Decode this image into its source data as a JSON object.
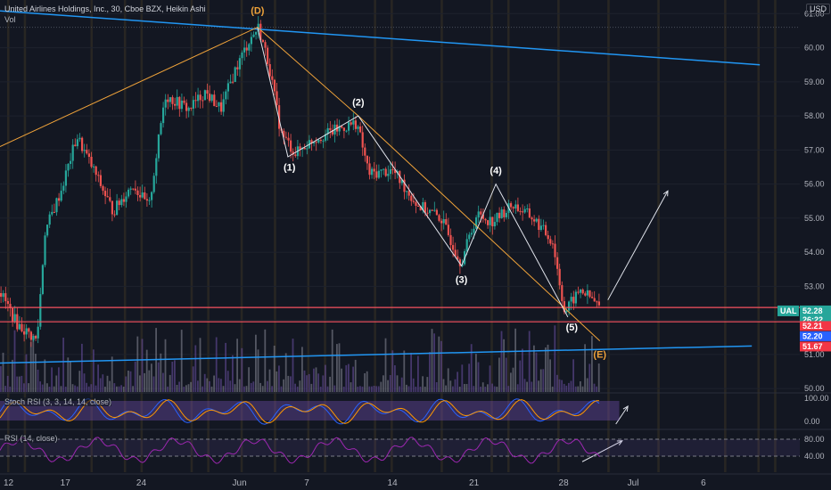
{
  "header": {
    "title": "United Airlines Holdings, Inc., 30, Cboe BZX, Heikin Ashi",
    "volume_label": "Vol",
    "currency": "USD"
  },
  "indicators": {
    "stoch_rsi_label": "Stoch RSI (3, 3, 14, 14, close)",
    "rsi_label": "RSI (14, close)"
  },
  "colors": {
    "background": "#131722",
    "bull": "#26a69a",
    "bear": "#ef5350",
    "trendline_blue": "#2196f3",
    "wave_line": "#f0a33a",
    "wave_path": "#e0e3eb",
    "hline_red": "#f7525f",
    "stoch_fill": "#7e57c2",
    "rsi_line": "#9c27b0"
  },
  "chart_data": {
    "type": "candlestick",
    "symbol": "UAL",
    "interval": "30",
    "style": "Heikin Ashi",
    "ylim": [
      49.9,
      61.4
    ],
    "y_ticks": [
      50.0,
      51.0,
      52.0,
      53.0,
      54.0,
      55.0,
      56.0,
      57.0,
      58.0,
      59.0,
      60.0,
      61.0
    ],
    "y_tick_labels": [
      "50.00",
      "51.00",
      "52.00",
      "53.00",
      "54.00",
      "55.00",
      "56.00",
      "57.00",
      "58.00",
      "59.00",
      "60.00",
      "61.00"
    ],
    "x_ticks": [
      {
        "label": "12",
        "pos": 0.0
      },
      {
        "label": "17",
        "pos": 0.071
      },
      {
        "label": "24",
        "pos": 0.166
      },
      {
        "label": "Jun",
        "pos": 0.286
      },
      {
        "label": "7",
        "pos": 0.376
      },
      {
        "label": "14",
        "pos": 0.48
      },
      {
        "label": "21",
        "pos": 0.582
      },
      {
        "label": "28",
        "pos": 0.694
      },
      {
        "label": "Jul",
        "pos": 0.78
      },
      {
        "label": "6",
        "pos": 0.872
      }
    ],
    "price_path": [
      {
        "t": 0.0,
        "p": 52.8
      },
      {
        "t": 0.02,
        "p": 51.9
      },
      {
        "t": 0.045,
        "p": 51.4
      },
      {
        "t": 0.055,
        "p": 54.6
      },
      {
        "t": 0.075,
        "p": 55.8
      },
      {
        "t": 0.095,
        "p": 57.4
      },
      {
        "t": 0.118,
        "p": 56.3
      },
      {
        "t": 0.14,
        "p": 55.2
      },
      {
        "t": 0.165,
        "p": 56.0
      },
      {
        "t": 0.185,
        "p": 55.3
      },
      {
        "t": 0.205,
        "p": 58.6
      },
      {
        "t": 0.235,
        "p": 58.2
      },
      {
        "t": 0.255,
        "p": 58.7
      },
      {
        "t": 0.275,
        "p": 58.2
      },
      {
        "t": 0.292,
        "p": 59.3
      },
      {
        "t": 0.31,
        "p": 60.2
      },
      {
        "t": 0.322,
        "p": 60.6
      },
      {
        "t": 0.335,
        "p": 59.5
      },
      {
        "t": 0.35,
        "p": 57.5
      },
      {
        "t": 0.368,
        "p": 56.9
      },
      {
        "t": 0.39,
        "p": 57.3
      },
      {
        "t": 0.42,
        "p": 57.6
      },
      {
        "t": 0.445,
        "p": 57.8
      },
      {
        "t": 0.46,
        "p": 56.3
      },
      {
        "t": 0.49,
        "p": 56.4
      },
      {
        "t": 0.52,
        "p": 55.4
      },
      {
        "t": 0.55,
        "p": 55.0
      },
      {
        "t": 0.575,
        "p": 53.7
      },
      {
        "t": 0.595,
        "p": 55.1
      },
      {
        "t": 0.615,
        "p": 54.9
      },
      {
        "t": 0.64,
        "p": 55.4
      },
      {
        "t": 0.665,
        "p": 55.0
      },
      {
        "t": 0.69,
        "p": 54.3
      },
      {
        "t": 0.705,
        "p": 52.2
      },
      {
        "t": 0.712,
        "p": 52.5
      },
      {
        "t": 0.725,
        "p": 52.9
      },
      {
        "t": 0.74,
        "p": 52.6
      },
      {
        "t": 0.752,
        "p": 52.3
      }
    ],
    "last_price": {
      "symbol": "UAL",
      "value": "52.28",
      "countdown": "26:22",
      "raw": 52.28
    },
    "price_badges": [
      {
        "value": "52.21",
        "raw": 52.21,
        "color": "#f23645"
      },
      {
        "value": "52.20",
        "raw": 52.2,
        "color": "#2962ff"
      },
      {
        "value": "51.67",
        "raw": 51.67,
        "color": "#f23645"
      }
    ],
    "horizontal_lines": [
      52.38,
      51.96
    ],
    "trendlines": [
      {
        "from": {
          "t": 0.0,
          "p": 61.08
        },
        "to": {
          "t": 0.95,
          "p": 59.5
        }
      },
      {
        "from": {
          "t": 0.0,
          "p": 50.75
        },
        "to": {
          "t": 0.94,
          "p": 51.25
        }
      }
    ],
    "wave_connectors": [
      {
        "t": 0.0,
        "p": 57.1
      },
      {
        "t": 0.322,
        "p": 60.6
      },
      {
        "t": 0.448,
        "p": 58.0
      },
      {
        "t": 0.75,
        "p": 51.4
      }
    ],
    "wave_path": [
      {
        "t": 0.322,
        "p": 60.6
      },
      {
        "t": 0.36,
        "p": 56.8
      },
      {
        "t": 0.448,
        "p": 58.0
      },
      {
        "t": 0.577,
        "p": 53.6
      },
      {
        "t": 0.62,
        "p": 56.0
      },
      {
        "t": 0.71,
        "p": 52.1
      }
    ],
    "wave_labels": [
      {
        "text": "(D)",
        "t": 0.322,
        "p": 61.0,
        "color": "#f0a33a"
      },
      {
        "text": "(1)",
        "t": 0.362,
        "p": 56.4,
        "color": "#ffffff"
      },
      {
        "text": "(2)",
        "t": 0.448,
        "p": 58.3,
        "color": "#ffffff"
      },
      {
        "text": "(3)",
        "t": 0.577,
        "p": 53.1,
        "color": "#ffffff"
      },
      {
        "text": "(4)",
        "t": 0.62,
        "p": 56.3,
        "color": "#ffffff"
      },
      {
        "text": "(5)",
        "t": 0.715,
        "p": 51.7,
        "color": "#ffffff"
      },
      {
        "text": "(E)",
        "t": 0.75,
        "p": 50.9,
        "color": "#f0a33a"
      }
    ],
    "projection_arrows": [
      {
        "from": {
          "t": 0.76,
          "p": 52.6
        },
        "to": {
          "t": 0.835,
          "p": 55.8
        },
        "pane": "price"
      },
      {
        "from": {
          "t": 0.77,
          "p": 0.15
        },
        "to": {
          "t": 0.785,
          "p": 0.65
        },
        "pane": "stoch"
      },
      {
        "from": {
          "t": 0.728,
          "p": 0.25
        },
        "to": {
          "t": 0.778,
          "p": 0.75
        },
        "pane": "rsi"
      }
    ],
    "stoch_ticks": [
      "100.00",
      "0.00"
    ],
    "rsi_ticks": [
      "80.00",
      "40.00"
    ]
  }
}
